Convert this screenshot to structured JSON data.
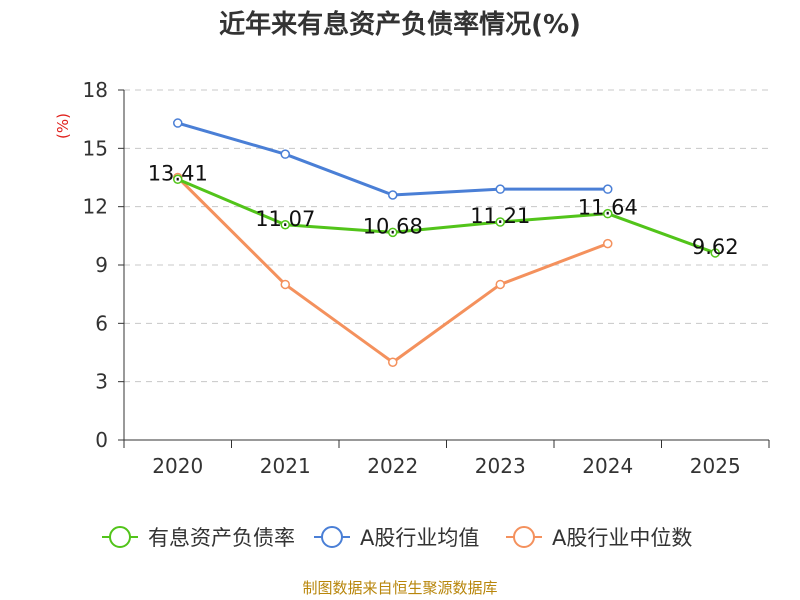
{
  "page": {
    "title": "近年来有息资产负债率情况(%)",
    "source": "制图数据来自恒生聚源数据库"
  },
  "chart_data": {
    "type": "line",
    "title": "近年来有息资产负债率情况(%)",
    "ylabel": "(%)",
    "xlabel": "",
    "categories": [
      "2020",
      "2021",
      "2022",
      "2023",
      "2024",
      "2025"
    ],
    "ylim": [
      0,
      18
    ],
    "yticks": [
      0,
      3,
      6,
      9,
      12,
      15,
      18
    ],
    "grid": true,
    "legend": "bottom",
    "series": [
      {
        "name": "有息资产负债率",
        "color": "#52c41a",
        "labeled": true,
        "values": [
          13.41,
          11.07,
          10.68,
          11.21,
          11.64,
          9.62
        ],
        "labels": [
          "13.41",
          "11.07",
          "10.68",
          "11.21",
          "11.64",
          "9.62"
        ]
      },
      {
        "name": "A股行业均值",
        "color": "#4a7fd6",
        "labeled": false,
        "values": [
          16.3,
          14.7,
          12.6,
          12.9,
          12.9,
          null
        ]
      },
      {
        "name": "A股行业中位数",
        "color": "#f4915d",
        "labeled": false,
        "values": [
          13.5,
          8.0,
          4.0,
          8.0,
          10.1,
          null
        ]
      }
    ]
  }
}
